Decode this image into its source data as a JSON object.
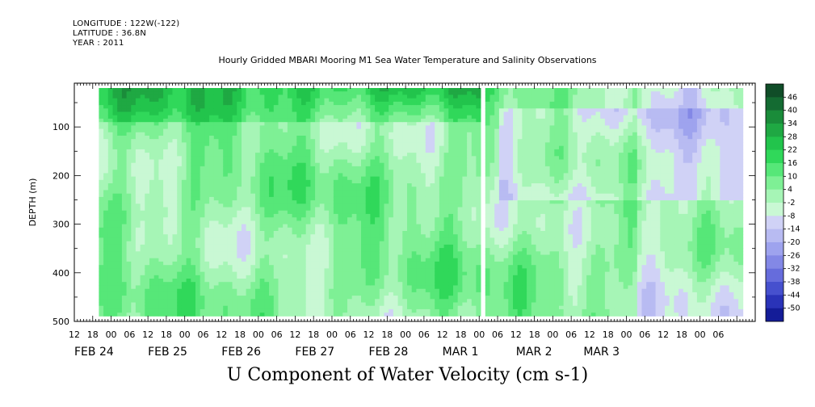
{
  "header": {
    "longitude": "LONGITUDE : 122W(-122)",
    "latitude": "LATITUDE : 36.8N",
    "year": "YEAR : 2011"
  },
  "chart_data": {
    "type": "heatmap",
    "title": "Hourly Gridded MBARI Mooring M1 Sea Water Temperature and Salinity Observations",
    "xlabel": "U Component of Water Velocity (cm s-1)",
    "ylabel": "DEPTH (m)",
    "ylim": [
      500,
      10
    ],
    "yticks": [
      100,
      200,
      300,
      400,
      500
    ],
    "xlim_hours": [
      -12,
      210
    ],
    "x_hour_ticks": [
      {
        "h": -12,
        "label": "12"
      },
      {
        "h": -6,
        "label": "18"
      },
      {
        "h": 0,
        "label": "00"
      },
      {
        "h": 6,
        "label": "06"
      },
      {
        "h": 12,
        "label": "12"
      },
      {
        "h": 18,
        "label": "18"
      },
      {
        "h": 24,
        "label": "00"
      },
      {
        "h": 30,
        "label": "06"
      },
      {
        "h": 36,
        "label": "12"
      },
      {
        "h": 42,
        "label": "18"
      },
      {
        "h": 48,
        "label": "00"
      },
      {
        "h": 54,
        "label": "06"
      },
      {
        "h": 60,
        "label": "12"
      },
      {
        "h": 66,
        "label": "18"
      },
      {
        "h": 72,
        "label": "00"
      },
      {
        "h": 78,
        "label": "06"
      },
      {
        "h": 84,
        "label": "12"
      },
      {
        "h": 90,
        "label": "18"
      },
      {
        "h": 96,
        "label": "00"
      },
      {
        "h": 102,
        "label": "06"
      },
      {
        "h": 108,
        "label": "12"
      },
      {
        "h": 114,
        "label": "18"
      },
      {
        "h": 120,
        "label": "00"
      },
      {
        "h": 126,
        "label": "06"
      },
      {
        "h": 132,
        "label": "12"
      },
      {
        "h": 138,
        "label": "18"
      },
      {
        "h": 144,
        "label": "00"
      },
      {
        "h": 150,
        "label": "06"
      },
      {
        "h": 156,
        "label": "12"
      },
      {
        "h": 162,
        "label": "18"
      },
      {
        "h": 168,
        "label": "00"
      },
      {
        "h": 174,
        "label": "06"
      },
      {
        "h": 180,
        "label": "12"
      },
      {
        "h": 186,
        "label": "18"
      },
      {
        "h": 192,
        "label": "00"
      },
      {
        "h": 198,
        "label": "06"
      }
    ],
    "date_labels": [
      {
        "h": -12,
        "label": "FEB 24"
      },
      {
        "h": 12,
        "label": "FEB 25"
      },
      {
        "h": 36,
        "label": "FEB 26"
      },
      {
        "h": 60,
        "label": "FEB 27"
      },
      {
        "h": 84,
        "label": "FEB 28"
      },
      {
        "h": 108,
        "label": "MAR  1"
      },
      {
        "h": 132,
        "label": "MAR  2"
      },
      {
        "h": 154,
        "label": "MAR  3"
      }
    ],
    "data_hours": [
      -4,
      205
    ],
    "gap_hours": [
      119.5,
      121.5
    ],
    "depth_range": [
      20,
      485
    ],
    "colorbar_levels": [
      48,
      46,
      40,
      34,
      28,
      22,
      16,
      10,
      4,
      -2,
      -8,
      -14,
      -20,
      -26,
      -32,
      -38,
      -44,
      -50
    ],
    "colorbar_labels": [
      "46",
      "40",
      "34",
      "28",
      "22",
      "16",
      "10",
      "4",
      "-2",
      "-8",
      "-14",
      "-20",
      "-26",
      "-32",
      "-38",
      "-44",
      "-50"
    ],
    "colorbar_colors": [
      "#104d28",
      "#146b32",
      "#1a8c3a",
      "#1fa843",
      "#22c44c",
      "#30d85a",
      "#56e778",
      "#7ef095",
      "#a6f5b6",
      "#c9f8d4",
      "#d0d2f6",
      "#b8bbf2",
      "#9ea3ee",
      "#8388e6",
      "#666cdc",
      "#4650ce",
      "#2a33b8",
      "#141c98"
    ],
    "grid": false
  }
}
